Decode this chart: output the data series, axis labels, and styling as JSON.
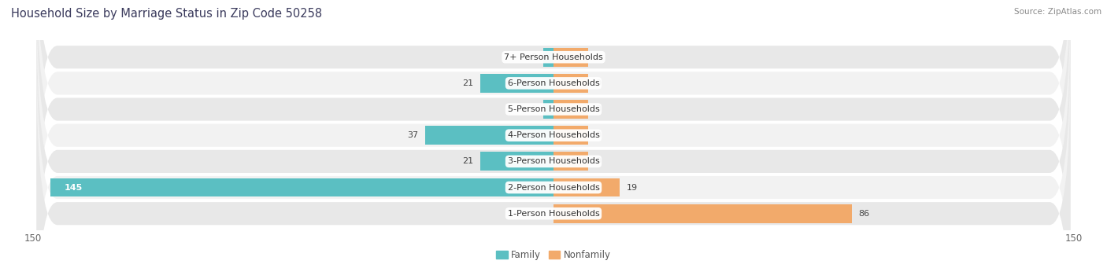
{
  "title": "Household Size by Marriage Status in Zip Code 50258",
  "source": "Source: ZipAtlas.com",
  "categories": [
    "7+ Person Households",
    "6-Person Households",
    "5-Person Households",
    "4-Person Households",
    "3-Person Households",
    "2-Person Households",
    "1-Person Households"
  ],
  "family_values": [
    3,
    21,
    3,
    37,
    21,
    145,
    0
  ],
  "nonfamily_values": [
    0,
    0,
    0,
    0,
    0,
    19,
    86
  ],
  "family_color": "#5bbfc2",
  "nonfamily_color": "#f2aa6b",
  "axis_max": 150,
  "axis_min": -150,
  "bg_color": "#ffffff",
  "row_color_odd": "#e8e8e8",
  "row_color_even": "#f2f2f2",
  "title_fontsize": 10.5,
  "label_fontsize": 8,
  "tick_fontsize": 8.5,
  "source_fontsize": 7.5,
  "nonfamily_stub": 10
}
